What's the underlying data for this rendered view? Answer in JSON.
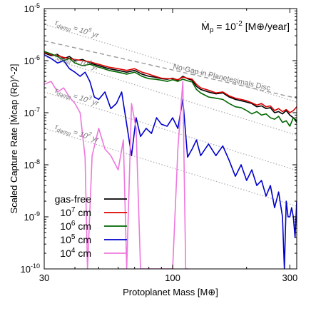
{
  "chart_data": {
    "type": "line",
    "title": "Ṁp = 10^-2 [M⊕/year]",
    "title_parts": {
      "prefix": "Ṁ",
      "sub": "p",
      "mid": " = 10",
      "sup": "-2",
      "suffix": " [M⊕/year]"
    },
    "xlabel": "Protoplanet Mass [M⊕]",
    "ylabel": "Scaled Capture Rate [Ṁcap (Rp)^-2]",
    "xscale": "log",
    "yscale": "log",
    "xlim": [
      30,
      320
    ],
    "ylim": [
      1e-10,
      1e-05
    ],
    "x_ticks": [
      {
        "value": 30,
        "label": "30"
      },
      {
        "value": 100,
        "label": "100"
      },
      {
        "value": 300,
        "label": "300"
      }
    ],
    "y_ticks": [
      {
        "value": 1e-10,
        "base": "10",
        "exp": "-10"
      },
      {
        "value": 1e-09,
        "base": "10",
        "exp": "-9"
      },
      {
        "value": 1e-08,
        "base": "10",
        "exp": "-8"
      },
      {
        "value": 1e-07,
        "base": "10",
        "exp": "-7"
      },
      {
        "value": 1e-06,
        "base": "10",
        "exp": "-6"
      },
      {
        "value": 1e-05,
        "base": "10",
        "exp": "-5"
      }
    ],
    "grid": false,
    "legend_position": "lower-left",
    "reference_lines": [
      {
        "label": "No-Gap in Planetesimals Disc",
        "style": "dashed",
        "color": "#999999",
        "points": [
          [
            30,
            2.4e-06
          ],
          [
            320,
            1.9e-07
          ]
        ]
      },
      {
        "label_base": "τ",
        "label_sub": "damp",
        "label_rest": " = 10",
        "label_sup": "5",
        "label_unit": " yr",
        "style": "dotted",
        "color": "#aaaaaa",
        "points": [
          [
            30,
            5e-06
          ],
          [
            320,
            1.6e-07
          ]
        ]
      },
      {
        "label_base": "τ",
        "label_sub": "damp",
        "label_rest": " = 10",
        "label_sup": "4",
        "label_unit": " yr",
        "style": "dotted",
        "color": "#aaaaaa",
        "points": [
          [
            30,
            1.2e-06
          ],
          [
            320,
            3.7e-08
          ]
        ]
      },
      {
        "label_base": "τ",
        "label_sub": "damp",
        "label_rest": " = 10",
        "label_sup": "3",
        "label_unit": " yr",
        "style": "dotted",
        "color": "#aaaaaa",
        "points": [
          [
            30,
            2.5e-07
          ],
          [
            320,
            7.8e-09
          ]
        ]
      },
      {
        "label_base": "τ",
        "label_sub": "damp",
        "label_rest": " = 10",
        "label_sup": "2",
        "label_unit": " yr",
        "style": "dotted",
        "color": "#aaaaaa",
        "points": [
          [
            30,
            5e-08
          ],
          [
            320,
            1.6e-09
          ]
        ]
      }
    ],
    "series": [
      {
        "name": "gas-free",
        "name_base": "gas-free",
        "name_sup": "",
        "name_unit": "",
        "color": "#000000",
        "points": [
          [
            30,
            1.4e-06
          ],
          [
            32,
            1.25e-06
          ],
          [
            34,
            1.3e-06
          ],
          [
            36,
            1.1e-06
          ],
          [
            38,
            1.2e-06
          ],
          [
            40,
            1e-06
          ],
          [
            43,
            1.05e-06
          ],
          [
            46,
            9e-07
          ],
          [
            50,
            8e-07
          ],
          [
            55,
            7e-07
          ],
          [
            60,
            6.5e-07
          ],
          [
            65,
            6e-07
          ],
          [
            70,
            6.5e-07
          ],
          [
            75,
            5.5e-07
          ],
          [
            80,
            5e-07
          ],
          [
            85,
            4.8e-07
          ],
          [
            90,
            4.5e-07
          ],
          [
            95,
            4.4e-07
          ],
          [
            100,
            4.6e-07
          ],
          [
            105,
            4.2e-07
          ],
          [
            110,
            5e-07
          ],
          [
            115,
            4.5e-07
          ],
          [
            120,
            4.2e-07
          ],
          [
            125,
            3.2e-07
          ],
          [
            130,
            2.8e-07
          ],
          [
            140,
            2.5e-07
          ],
          [
            150,
            2.3e-07
          ],
          [
            160,
            2.4e-07
          ],
          [
            170,
            2e-07
          ],
          [
            180,
            1.8e-07
          ],
          [
            190,
            1.7e-07
          ],
          [
            200,
            1.6e-07
          ],
          [
            210,
            1.5e-07
          ],
          [
            220,
            1.3e-07
          ],
          [
            230,
            1.35e-07
          ],
          [
            240,
            1.2e-07
          ],
          [
            250,
            1.25e-07
          ],
          [
            260,
            1e-07
          ],
          [
            270,
            1.05e-07
          ],
          [
            280,
            9.5e-08
          ],
          [
            290,
            1.1e-07
          ],
          [
            300,
            9e-08
          ],
          [
            310,
            8e-08
          ],
          [
            320,
            7e-08
          ]
        ]
      },
      {
        "name": "10^7 cm",
        "name_base": "10",
        "name_sup": "7",
        "name_unit": " cm",
        "color": "#dd0000",
        "points": [
          [
            30,
            1.45e-06
          ],
          [
            32,
            1.3e-06
          ],
          [
            34,
            1.25e-06
          ],
          [
            36,
            1.15e-06
          ],
          [
            38,
            1.1e-06
          ],
          [
            40,
            1.05e-06
          ],
          [
            43,
            1e-06
          ],
          [
            46,
            9.5e-07
          ],
          [
            50,
            8.5e-07
          ],
          [
            55,
            7.5e-07
          ],
          [
            60,
            7e-07
          ],
          [
            65,
            6.5e-07
          ],
          [
            70,
            7e-07
          ],
          [
            75,
            6e-07
          ],
          [
            80,
            5.5e-07
          ],
          [
            85,
            5e-07
          ],
          [
            90,
            4.6e-07
          ],
          [
            95,
            4.5e-07
          ],
          [
            100,
            4.5e-07
          ],
          [
            105,
            4.3e-07
          ],
          [
            110,
            4.8e-07
          ],
          [
            115,
            4.6e-07
          ],
          [
            120,
            4.4e-07
          ],
          [
            125,
            3.5e-07
          ],
          [
            130,
            3e-07
          ],
          [
            140,
            2.7e-07
          ],
          [
            150,
            2.4e-07
          ],
          [
            160,
            2.5e-07
          ],
          [
            170,
            2.1e-07
          ],
          [
            180,
            1.9e-07
          ],
          [
            190,
            1.8e-07
          ],
          [
            200,
            1.7e-07
          ],
          [
            210,
            1.55e-07
          ],
          [
            220,
            1.4e-07
          ],
          [
            230,
            1.5e-07
          ],
          [
            240,
            1.3e-07
          ],
          [
            250,
            1.35e-07
          ],
          [
            260,
            1.1e-07
          ],
          [
            270,
            1.2e-07
          ],
          [
            280,
            1.05e-07
          ],
          [
            290,
            1.15e-07
          ],
          [
            300,
            1e-07
          ],
          [
            310,
            1.1e-07
          ],
          [
            320,
            1.3e-07
          ]
        ]
      },
      {
        "name": "10^6 cm",
        "name_base": "10",
        "name_sup": "6",
        "name_unit": " cm",
        "color": "#006600",
        "points": [
          [
            30,
            1.5e-06
          ],
          [
            32,
            1.35e-06
          ],
          [
            34,
            1.2e-06
          ],
          [
            36,
            1e-06
          ],
          [
            38,
            1.1e-06
          ],
          [
            40,
            9e-07
          ],
          [
            43,
            8e-07
          ],
          [
            46,
            8.5e-07
          ],
          [
            50,
            7.5e-07
          ],
          [
            55,
            6.5e-07
          ],
          [
            60,
            6e-07
          ],
          [
            65,
            5.5e-07
          ],
          [
            70,
            6e-07
          ],
          [
            75,
            5e-07
          ],
          [
            80,
            4.5e-07
          ],
          [
            85,
            4.4e-07
          ],
          [
            90,
            4.2e-07
          ],
          [
            95,
            4e-07
          ],
          [
            100,
            4.3e-07
          ],
          [
            105,
            4e-07
          ],
          [
            110,
            4.4e-07
          ],
          [
            115,
            4.1e-07
          ],
          [
            120,
            3.9e-07
          ],
          [
            125,
            2.8e-07
          ],
          [
            130,
            2.4e-07
          ],
          [
            140,
            2e-07
          ],
          [
            150,
            1.9e-07
          ],
          [
            160,
            1.8e-07
          ],
          [
            170,
            1.5e-07
          ],
          [
            180,
            1.3e-07
          ],
          [
            190,
            1.25e-07
          ],
          [
            200,
            1.1e-07
          ],
          [
            210,
            9.5e-08
          ],
          [
            220,
            1.05e-07
          ],
          [
            230,
            9e-08
          ],
          [
            240,
            9.5e-08
          ],
          [
            250,
            8e-08
          ],
          [
            260,
            7.5e-08
          ],
          [
            270,
            8.5e-08
          ],
          [
            280,
            6.5e-08
          ],
          [
            290,
            7e-08
          ],
          [
            300,
            5.5e-08
          ],
          [
            310,
            8e-08
          ],
          [
            320,
            6.5e-08
          ]
        ]
      },
      {
        "name": "10^5 cm",
        "name_base": "10",
        "name_sup": "5",
        "name_unit": " cm",
        "color": "#0000cc",
        "points": [
          [
            30,
            1.3e-06
          ],
          [
            32,
            1.1e-06
          ],
          [
            34,
            9e-07
          ],
          [
            36,
            1e-06
          ],
          [
            38,
            7e-07
          ],
          [
            40,
            6e-07
          ],
          [
            42,
            5e-07
          ],
          [
            44,
            6e-07
          ],
          [
            46,
            4e-07
          ],
          [
            48,
            2e-07
          ],
          [
            50,
            1.8e-07
          ],
          [
            53,
            2.5e-07
          ],
          [
            56,
            1.2e-07
          ],
          [
            59,
            1.5e-07
          ],
          [
            62,
            2.5e-07
          ],
          [
            65,
            6e-08
          ],
          [
            68,
            1.5e-08
          ],
          [
            71,
            8e-08
          ],
          [
            74,
            3.5e-08
          ],
          [
            78,
            5e-08
          ],
          [
            82,
            4e-08
          ],
          [
            86,
            8e-08
          ],
          [
            90,
            6e-08
          ],
          [
            95,
            5.5e-08
          ],
          [
            100,
            8e-08
          ],
          [
            105,
            5e-08
          ],
          [
            110,
            1.8e-07
          ],
          [
            115,
            1.4e-08
          ],
          [
            120,
            2e-08
          ],
          [
            125,
            3e-08
          ],
          [
            130,
            1.5e-08
          ],
          [
            140,
            2.5e-08
          ],
          [
            150,
            1.5e-08
          ],
          [
            160,
            2.3e-08
          ],
          [
            170,
            1.2e-08
          ],
          [
            180,
            6e-09
          ],
          [
            190,
            1e-08
          ],
          [
            200,
            5e-09
          ],
          [
            210,
            8e-09
          ],
          [
            220,
            4e-09
          ],
          [
            230,
            5e-09
          ],
          [
            240,
            2.5e-09
          ],
          [
            250,
            4e-09
          ],
          [
            260,
            1.5e-09
          ],
          [
            270,
            3e-09
          ],
          [
            280,
            1e-09
          ],
          [
            285,
            1e-10
          ],
          [
            290,
            2e-09
          ],
          [
            295,
            1e-09
          ],
          [
            300,
            1e-09
          ],
          [
            305,
            1.5e-09
          ],
          [
            310,
            1e-09
          ],
          [
            315,
            4e-10
          ],
          [
            320,
            2e-09
          ]
        ]
      },
      {
        "name": "10^4 cm",
        "name_base": "10",
        "name_sup": "4",
        "name_unit": " cm",
        "color": "#ee77dd",
        "points": [
          [
            30,
            3.5e-07
          ],
          [
            32,
            4e-07
          ],
          [
            34,
            2.5e-07
          ],
          [
            36,
            3e-07
          ],
          [
            38,
            2e-07
          ],
          [
            40,
            1.5e-07
          ],
          [
            42,
            1e-07
          ],
          [
            44,
            1.4e-08
          ],
          [
            45,
            1e-10
          ],
          [
            47,
            1.5e-08
          ],
          [
            50,
            5e-08
          ],
          [
            53,
            2e-08
          ],
          [
            56,
            1.5e-08
          ],
          [
            60,
            8e-09
          ],
          [
            63,
            3e-08
          ],
          [
            65,
            1e-10
          ],
          [
            68,
            1.5e-07
          ],
          [
            71,
            5e-08
          ],
          [
            74,
            1e-10
          ],
          [
            78,
            1e-10
          ],
          [
            82,
            1e-10
          ],
          [
            86,
            1e-10
          ],
          [
            90,
            1e-10
          ],
          [
            95,
            1e-10
          ],
          [
            100,
            1e-10
          ],
          [
            105,
            2e-08
          ],
          [
            110,
            4e-07
          ],
          [
            113,
            1e-10
          ],
          [
            116,
            1e-10
          ]
        ]
      }
    ]
  }
}
